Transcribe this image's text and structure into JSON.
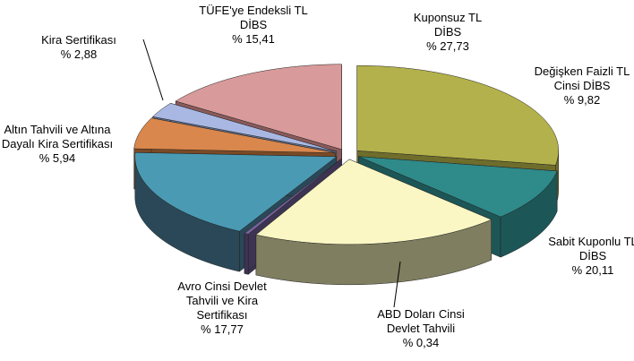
{
  "chart_data": {
    "type": "pie3d",
    "categories": [
      "Kuponsuz TL DİBS",
      "Değişken Faizli TL Cinsi DİBS",
      "Sabit Kuponlu TL DİBS",
      "ABD Doları Cinsi Devlet Tahvili",
      "Avro Cinsi Devlet Tahvili ve Kira Sertifikası",
      "Altın Tahvili ve Altına Dayalı Kira Sertifikası",
      "Kira Sertifikası",
      "TÜFE'ye Endeksli TL DİBS"
    ],
    "values": [
      27.73,
      9.82,
      20.11,
      0.34,
      17.77,
      5.94,
      2.88,
      15.41
    ],
    "value_labels": [
      "% 27,73",
      "% 9,82",
      "% 20,11",
      "% 0,34",
      "% 17,77",
      "% 5,94",
      "% 2,88",
      "% 15,41"
    ],
    "colors": [
      "#b3b14b",
      "#2f8a8a",
      "#fbf7c4",
      "#76639a",
      "#4a9ab4",
      "#d9874c",
      "#a9b8e2",
      "#d89a9a"
    ],
    "side_colors": [
      "#6f6d2c",
      "#1d5656",
      "#7f7e60",
      "#3d3352",
      "#2a4858",
      "#7a4a25",
      "#5e6a88",
      "#8a5a5a"
    ]
  }
}
